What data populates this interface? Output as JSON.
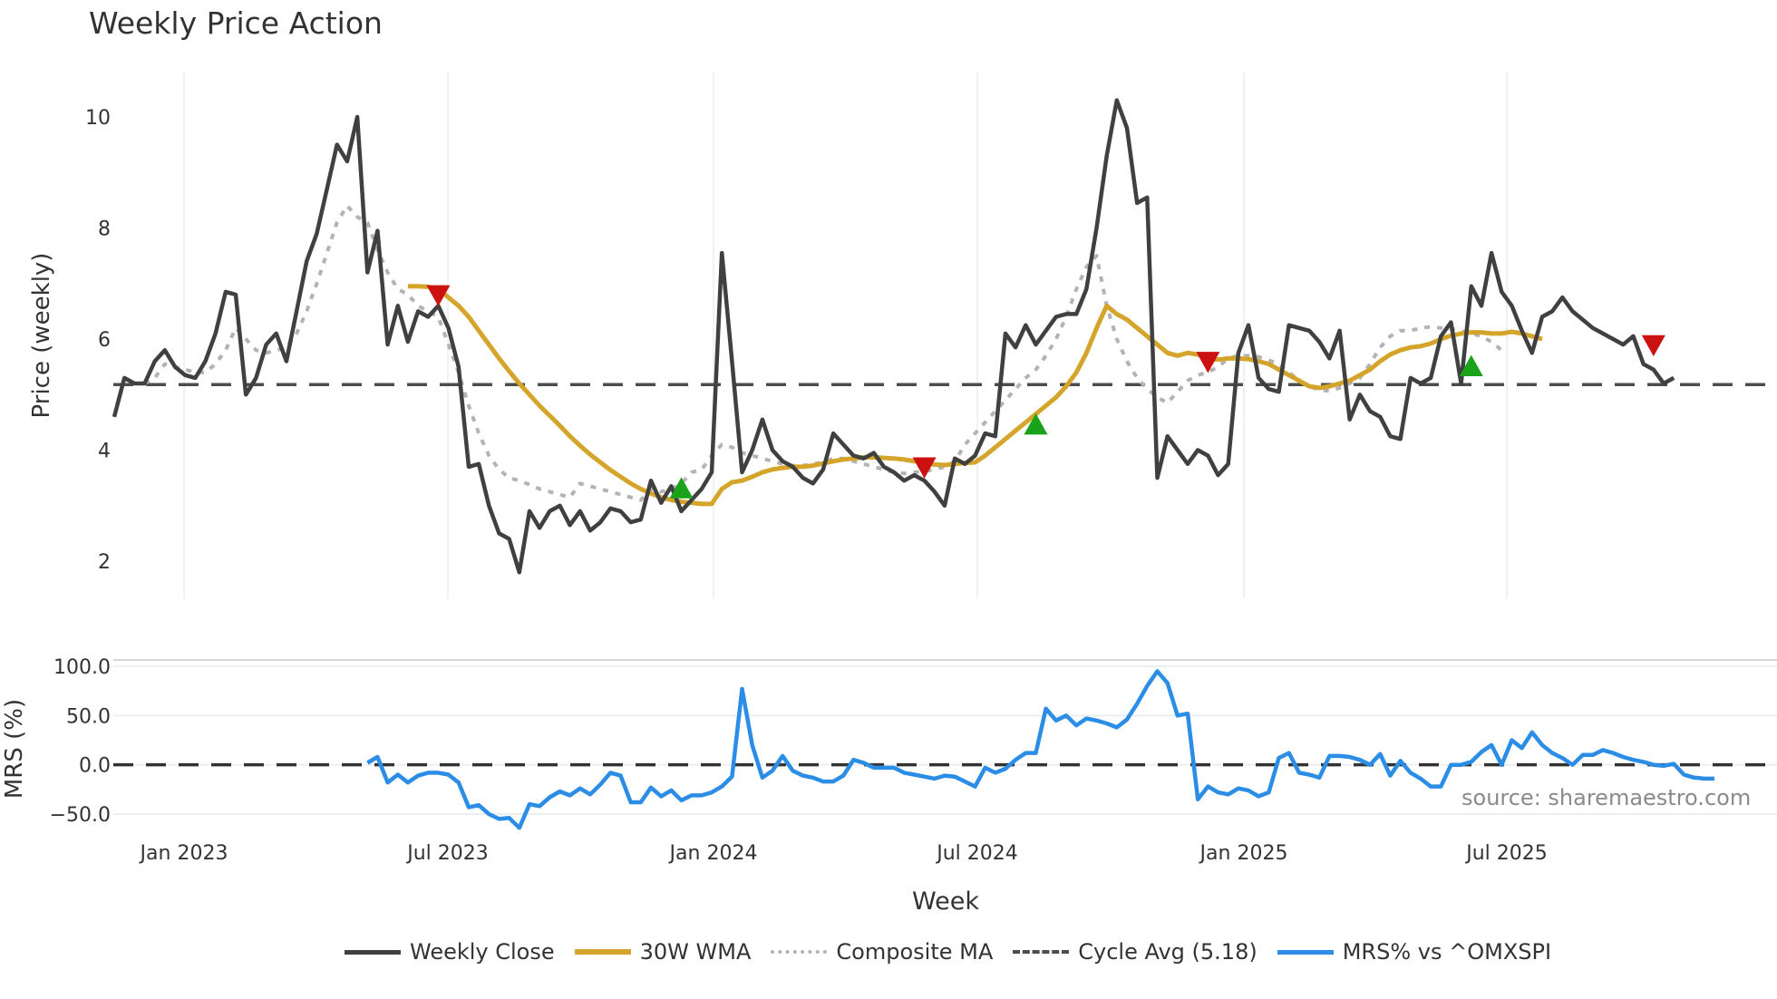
{
  "chart_data": {
    "type": "line",
    "title": "Weekly Price Action",
    "source_note": "source: sharemaestro.com",
    "x_ticks": [
      "Jan 2023",
      "Jul 2023",
      "Jan 2024",
      "Jul 2024",
      "Jan 2025",
      "Jul 2025"
    ],
    "xlabel": "Week",
    "panels": [
      {
        "name": "price",
        "ylabel": "Price (weekly)",
        "yticks": [
          2,
          4,
          6,
          8,
          10
        ],
        "ylim": [
          1.5,
          10.8
        ],
        "series": [
          {
            "name": "Weekly Close",
            "color": "#404040",
            "style": "solid",
            "values": [
              4.6,
              5.3,
              5.2,
              5.2,
              5.6,
              5.8,
              5.5,
              5.35,
              5.3,
              5.6,
              6.1,
              6.85,
              6.8,
              5.0,
              5.3,
              5.9,
              6.1,
              5.6,
              6.5,
              7.4,
              7.9,
              8.7,
              9.5,
              9.2,
              10.0,
              7.2,
              7.95,
              5.9,
              6.6,
              5.95,
              6.5,
              6.4,
              6.6,
              6.2,
              5.5,
              3.7,
              3.75,
              3.0,
              2.5,
              2.4,
              1.8,
              2.9,
              2.6,
              2.9,
              3.0,
              2.65,
              2.9,
              2.55,
              2.7,
              2.95,
              2.9,
              2.7,
              2.75,
              3.45,
              3.05,
              3.35,
              2.9,
              3.1,
              3.3,
              3.6,
              7.55,
              5.6,
              3.6,
              4.0,
              4.55,
              4.0,
              3.8,
              3.7,
              3.5,
              3.4,
              3.65,
              4.3,
              4.1,
              3.9,
              3.85,
              3.95,
              3.7,
              3.6,
              3.45,
              3.55,
              3.45,
              3.25,
              3.0,
              3.85,
              3.75,
              3.9,
              4.3,
              4.25,
              6.1,
              5.85,
              6.25,
              5.9,
              6.15,
              6.4,
              6.45,
              6.45,
              6.9,
              8.0,
              9.3,
              10.3,
              9.8,
              8.45,
              8.55,
              3.5,
              4.25,
              4.0,
              3.75,
              4.0,
              3.9,
              3.55,
              3.75,
              5.75,
              6.25,
              5.3,
              5.1,
              5.05,
              6.25,
              6.2,
              6.15,
              5.95,
              5.65,
              6.15,
              4.55,
              5.0,
              4.7,
              4.6,
              4.25,
              4.2,
              5.3,
              5.2,
              5.3,
              6.05,
              6.3,
              5.2,
              6.95,
              6.6,
              7.55,
              6.85,
              6.6,
              6.15,
              5.75,
              6.4,
              6.5,
              6.75,
              6.5,
              6.35,
              6.2,
              6.1,
              6.0,
              5.9,
              6.05,
              5.55,
              5.45,
              5.2,
              5.3
            ]
          },
          {
            "name": "30W WMA",
            "color": "#d4a52a",
            "style": "solid",
            "start_index": 29,
            "values": [
              6.95,
              6.95,
              6.94,
              6.9,
              6.75,
              6.6,
              6.4,
              6.15,
              5.9,
              5.65,
              5.42,
              5.2,
              5.0,
              4.8,
              4.62,
              4.44,
              4.25,
              4.08,
              3.92,
              3.78,
              3.64,
              3.52,
              3.4,
              3.3,
              3.22,
              3.15,
              3.1,
              3.07,
              3.05,
              3.03,
              3.03,
              3.3,
              3.42,
              3.45,
              3.52,
              3.6,
              3.65,
              3.68,
              3.7,
              3.7,
              3.72,
              3.76,
              3.8,
              3.83,
              3.85,
              3.87,
              3.87,
              3.86,
              3.85,
              3.83,
              3.8,
              3.77,
              3.74,
              3.73,
              3.75,
              3.77,
              3.78,
              3.9,
              4.05,
              4.2,
              4.35,
              4.5,
              4.65,
              4.8,
              4.95,
              5.15,
              5.4,
              5.75,
              6.2,
              6.6,
              6.45,
              6.35,
              6.2,
              6.05,
              5.9,
              5.75,
              5.7,
              5.75,
              5.72,
              5.65,
              5.63,
              5.65,
              5.65,
              5.64,
              5.6,
              5.55,
              5.45,
              5.35,
              5.25,
              5.15,
              5.12,
              5.15,
              5.2,
              5.25,
              5.35,
              5.45,
              5.6,
              5.72,
              5.8,
              5.85,
              5.87,
              5.92,
              6.0,
              6.06,
              6.1,
              6.12,
              6.12,
              6.1,
              6.1,
              6.13,
              6.1,
              6.05,
              6.0
            ]
          },
          {
            "name": "Composite MA",
            "color": "#b3b3b3",
            "style": "dotted",
            "start_index": 3,
            "values": [
              5.2,
              5.3,
              5.55,
              5.5,
              5.45,
              5.4,
              5.4,
              5.55,
              5.8,
              6.2,
              6.0,
              5.8,
              5.75,
              5.8,
              5.85,
              6.1,
              6.5,
              7.0,
              7.55,
              8.1,
              8.4,
              8.2,
              8.1,
              7.6,
              7.2,
              6.9,
              6.8,
              6.6,
              6.5,
              6.4,
              5.9,
              5.4,
              4.8,
              4.3,
              3.9,
              3.65,
              3.5,
              3.45,
              3.38,
              3.3,
              3.25,
              3.2,
              3.15,
              3.4,
              3.35,
              3.3,
              3.25,
              3.2,
              3.15,
              3.1,
              3.3,
              3.25,
              3.3,
              3.4,
              3.6,
              3.65,
              3.9,
              4.1,
              4.05,
              3.95,
              3.9,
              3.85,
              3.8,
              3.75,
              3.72,
              3.72,
              3.75,
              3.78,
              3.85,
              3.85,
              3.8,
              3.75,
              3.7,
              3.65,
              3.6,
              3.58,
              3.6,
              3.62,
              3.65,
              3.7,
              3.8,
              4.1,
              4.3,
              4.5,
              4.7,
              4.9,
              5.1,
              5.3,
              5.45,
              5.7,
              6.0,
              6.4,
              6.9,
              7.3,
              7.5,
              6.6,
              6.0,
              5.6,
              5.3,
              5.1,
              4.95,
              4.85,
              5.05,
              5.25,
              5.35,
              5.4,
              5.5,
              5.65,
              5.7,
              5.7,
              5.68,
              5.62,
              5.55,
              5.4,
              5.25,
              5.15,
              5.08,
              5.07,
              5.12,
              5.2,
              5.3,
              5.55,
              5.85,
              6.05,
              6.15,
              6.15,
              6.2,
              6.22,
              6.2,
              6.18,
              6.15,
              6.1,
              6.05,
              5.95,
              5.8
            ]
          },
          {
            "name": "Cycle Avg (5.18)",
            "color": "#4d4d4d",
            "style": "dashed",
            "constant": 5.18
          }
        ],
        "markers": [
          {
            "type": "sell",
            "shape": "triangle-down",
            "color": "#cc1111",
            "index": 32,
            "value": 6.8
          },
          {
            "type": "buy",
            "shape": "triangle-up",
            "color": "#1aa31a",
            "index": 56,
            "value": 3.3
          },
          {
            "type": "sell",
            "shape": "triangle-down",
            "color": "#cc1111",
            "index": 80,
            "value": 3.7
          },
          {
            "type": "buy",
            "shape": "triangle-up",
            "color": "#1aa31a",
            "index": 91,
            "value": 4.45
          },
          {
            "type": "sell",
            "shape": "triangle-down",
            "color": "#cc1111",
            "index": 108,
            "value": 5.6
          },
          {
            "type": "buy",
            "shape": "triangle-up",
            "color": "#1aa31a",
            "index": 134,
            "value": 5.5
          },
          {
            "type": "sell",
            "shape": "triangle-down",
            "color": "#cc1111",
            "index": 152,
            "value": 5.9
          }
        ]
      },
      {
        "name": "mrs",
        "ylabel": "MRS (%)",
        "yticks": [
          -50.0,
          0.0,
          50.0,
          100.0
        ],
        "ytick_labels": [
          "−50.0",
          "0.0",
          "50.0",
          "100.0"
        ],
        "ylim": [
          -65,
          108
        ],
        "series": [
          {
            "name": "MRS% vs ^OMXSPI",
            "color": "#2b8de6",
            "style": "solid",
            "start_index": 25,
            "values": [
              2,
              8,
              -18,
              -10,
              -18,
              -11,
              -8,
              -8,
              -10,
              -18,
              -43,
              -41,
              -50,
              -55,
              -54,
              -64,
              -40,
              -42,
              -33,
              -27,
              -31,
              -24,
              -30,
              -20,
              -8,
              -11,
              -38,
              -38,
              -23,
              -32,
              -26,
              -36,
              -31,
              -31,
              -28,
              -22,
              -12,
              77,
              20,
              -13,
              -6,
              9,
              -6,
              -11,
              -13,
              -17,
              -17,
              -11,
              5,
              2,
              -3,
              -3,
              -3,
              -8,
              -10,
              -12,
              -14,
              -11,
              -12,
              -17,
              -22,
              -3,
              -8,
              -4,
              5,
              12,
              12,
              57,
              45,
              50,
              40,
              47,
              45,
              42,
              38,
              46,
              62,
              80,
              95,
              83,
              50,
              52,
              -35,
              -22,
              -28,
              -30,
              -24,
              -26,
              -32,
              -28,
              7,
              12,
              -8,
              -10,
              -13,
              9,
              9,
              8,
              5,
              0,
              11,
              -11,
              4,
              -8,
              -14,
              -22,
              -22,
              0,
              0,
              3,
              13,
              20,
              0,
              25,
              17,
              33,
              20,
              12,
              7,
              0,
              10,
              10,
              15,
              12,
              8,
              5,
              3,
              0,
              -1,
              1,
              -10,
              -13,
              -14,
              -14
            ]
          },
          {
            "name": "Zero",
            "color": "#333333",
            "style": "dashed",
            "constant": 0
          }
        ]
      }
    ],
    "legend": {
      "position": "bottom",
      "entries": [
        {
          "label": "Weekly Close",
          "color": "#404040",
          "style": "solid"
        },
        {
          "label": "30W WMA",
          "color": "#d4a52a",
          "style": "solid"
        },
        {
          "label": "Composite MA",
          "color": "#b3b3b3",
          "style": "dotted"
        },
        {
          "label": "Cycle Avg (5.18)",
          "color": "#4d4d4d",
          "style": "dashed"
        },
        {
          "label": "MRS% vs ^OMXSPI",
          "color": "#2b8de6",
          "style": "solid"
        }
      ]
    }
  }
}
